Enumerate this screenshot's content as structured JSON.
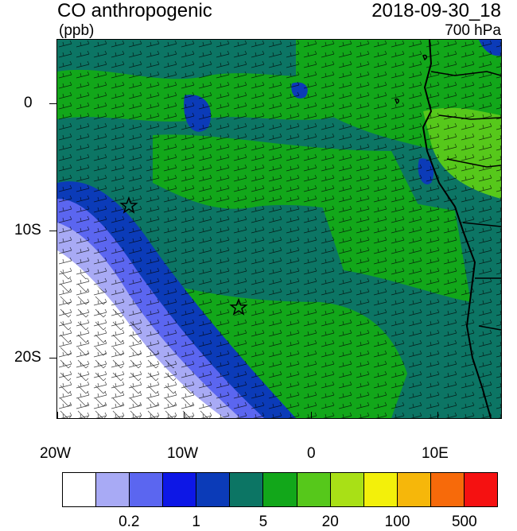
{
  "header": {
    "variable": "CO anthropogenic",
    "units": "(ppb)",
    "datetime": "2018-09-30_18",
    "level": "700 hPa"
  },
  "axes": {
    "x_ticks": [
      "20W",
      "10W",
      "0",
      "10E"
    ],
    "y_ticks": [
      "0",
      "10S",
      "20S"
    ]
  },
  "colorbar": {
    "colors": [
      "#ffffff",
      "#a8aaf5",
      "#5b66f0",
      "#0d17e6",
      "#0b3bb8",
      "#0c7564",
      "#12a71a",
      "#56c81b",
      "#a9e016",
      "#f3f00a",
      "#f6b70a",
      "#f76a0a",
      "#f51111"
    ],
    "labels": [
      "0.2",
      "1",
      "5",
      "20",
      "100",
      "500"
    ]
  },
  "markers": {
    "symbol": "star",
    "count": 2
  },
  "map": {
    "domain": "southeast Atlantic / southwest Africa",
    "land_outline_color": "#000000"
  }
}
